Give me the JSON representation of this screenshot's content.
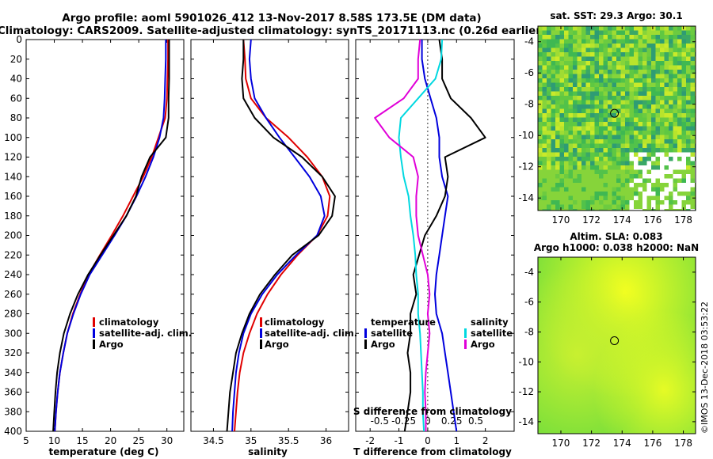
{
  "title_line1": "Argo profile: aoml 5901026_412 13-Nov-2017 8.58S 173.5E (DM data)",
  "title_line2": "Climatology: CARS2009. Satellite-adjusted climatology: synTS_20171113.nc (0.26d earlier)",
  "colors": {
    "climatology": "#e00000",
    "satellite": "#0000dd",
    "argo": "#000000",
    "s_satellite": "#00d8e0",
    "s_argo": "#e000d8"
  },
  "chart_data": [
    {
      "type": "line",
      "id": "temperature",
      "xlabel": "temperature (deg C)",
      "ylabel": "",
      "xlim": [
        5,
        33
      ],
      "ylim": [
        400,
        0
      ],
      "xticks": [
        5,
        10,
        15,
        20,
        25,
        30
      ],
      "xtick_labels": [
        "5",
        "10",
        "15",
        "20",
        "25",
        "30"
      ],
      "yticks": [
        0,
        20,
        40,
        60,
        80,
        100,
        120,
        140,
        160,
        180,
        200,
        220,
        240,
        260,
        280,
        300,
        320,
        340,
        360,
        380,
        400
      ],
      "yticks_labels": [
        "0",
        "20",
        "40",
        "60",
        "80",
        "100",
        "120",
        "140",
        "160",
        "180",
        "200",
        "220",
        "240",
        "260",
        "280",
        "300",
        "320",
        "340",
        "360",
        "380",
        "400"
      ],
      "legend": [
        "climatology",
        "satellite-adj. clim.",
        "Argo"
      ],
      "series": [
        {
          "name": "climatology",
          "color": "#e00000",
          "x": [
            30.2,
            30.2,
            30.1,
            30.0,
            29.7,
            28.5,
            27.3,
            25.8,
            24.0,
            22.2,
            20.2,
            18.1,
            16.1,
            14.6,
            13.3,
            12.3,
            11.6,
            11.0,
            10.6,
            10.3,
            10.1
          ],
          "y": [
            0,
            20,
            40,
            60,
            80,
            100,
            120,
            140,
            160,
            180,
            200,
            220,
            240,
            260,
            280,
            300,
            320,
            340,
            360,
            380,
            400
          ]
        },
        {
          "name": "satellite-adj. clim.",
          "color": "#0000dd",
          "x": [
            29.8,
            29.8,
            29.7,
            29.6,
            29.4,
            28.7,
            27.6,
            26.2,
            24.6,
            22.8,
            20.7,
            18.5,
            16.3,
            14.7,
            13.4,
            12.3,
            11.6,
            11.0,
            10.6,
            10.3,
            10.1
          ],
          "y": [
            0,
            20,
            40,
            60,
            80,
            100,
            120,
            140,
            160,
            180,
            200,
            220,
            240,
            260,
            280,
            300,
            320,
            340,
            360,
            380,
            400
          ]
        },
        {
          "name": "Argo",
          "color": "#000000",
          "x": [
            30.4,
            30.4,
            30.4,
            30.3,
            30.3,
            29.8,
            27.0,
            25.5,
            24.5,
            22.8,
            20.5,
            18.2,
            16.0,
            14.2,
            12.8,
            11.7,
            11.0,
            10.5,
            10.2,
            10.0,
            9.8
          ],
          "y": [
            0,
            20,
            40,
            60,
            80,
            100,
            120,
            140,
            160,
            180,
            200,
            220,
            240,
            260,
            280,
            300,
            320,
            340,
            360,
            380,
            400
          ]
        }
      ]
    },
    {
      "type": "line",
      "id": "salinity",
      "xlabel": "salinity",
      "ylabel": "",
      "xlim": [
        34.2,
        36.3
      ],
      "ylim": [
        400,
        0
      ],
      "xticks": [
        34.5,
        35,
        35.5,
        36
      ],
      "xtick_labels": [
        "34.5",
        "35",
        "35.5",
        "36"
      ],
      "legend": [
        "climatology",
        "satellite-adj. clim.",
        "Argo"
      ],
      "series": [
        {
          "name": "climatology",
          "color": "#e00000",
          "x": [
            34.9,
            34.92,
            34.93,
            35.0,
            35.2,
            35.5,
            35.75,
            35.95,
            36.05,
            36.02,
            35.88,
            35.62,
            35.4,
            35.22,
            35.08,
            34.98,
            34.9,
            34.85,
            34.82,
            34.8,
            34.78
          ],
          "y": [
            0,
            20,
            40,
            60,
            80,
            100,
            120,
            140,
            160,
            180,
            200,
            220,
            240,
            260,
            280,
            300,
            320,
            340,
            360,
            380,
            400
          ]
        },
        {
          "name": "satellite-adj. clim.",
          "color": "#0000dd",
          "x": [
            35.0,
            34.98,
            35.0,
            35.05,
            35.2,
            35.38,
            35.58,
            35.78,
            35.93,
            35.98,
            35.88,
            35.6,
            35.35,
            35.15,
            35.0,
            34.9,
            34.84,
            34.8,
            34.78,
            34.76,
            34.75
          ],
          "y": [
            0,
            20,
            40,
            60,
            80,
            100,
            120,
            140,
            160,
            180,
            200,
            220,
            240,
            260,
            280,
            300,
            320,
            340,
            360,
            380,
            400
          ]
        },
        {
          "name": "Argo",
          "color": "#000000",
          "x": [
            34.9,
            34.9,
            34.88,
            34.9,
            35.05,
            35.3,
            35.68,
            35.95,
            36.12,
            36.08,
            35.9,
            35.55,
            35.32,
            35.12,
            34.98,
            34.88,
            34.8,
            34.76,
            34.72,
            34.7,
            34.68
          ],
          "y": [
            0,
            20,
            40,
            60,
            80,
            100,
            120,
            140,
            160,
            180,
            200,
            220,
            240,
            260,
            280,
            300,
            320,
            340,
            360,
            380,
            400
          ]
        }
      ]
    },
    {
      "type": "line",
      "id": "difference",
      "xlabel": "T difference from climatology",
      "x2label": "S difference from climatology",
      "xlim": [
        -2.5,
        3
      ],
      "ylim": [
        400,
        0
      ],
      "xticks": [
        -2,
        -1,
        0,
        1,
        2
      ],
      "xtick_labels": [
        "-2",
        "-1",
        "0",
        "1",
        "2"
      ],
      "x2lim": [
        -0.75,
        0.9
      ],
      "x2ticks": [
        -0.5,
        -0.25,
        0,
        0.25,
        0.5
      ],
      "x2tick_labels": [
        "-0.5",
        "-0.25",
        "0",
        "0.25",
        "0.5"
      ],
      "legend_temperature_title": "temperature",
      "legend_salinity_title": "salinity",
      "legend_items": [
        "satellite",
        "Argo"
      ],
      "series": [
        {
          "name": "T satellite",
          "axis": "T",
          "color": "#0000dd",
          "x": [
            -0.2,
            -0.2,
            -0.1,
            0.1,
            0.3,
            0.4,
            0.4,
            0.5,
            0.7,
            0.6,
            0.5,
            0.4,
            0.3,
            0.25,
            0.3,
            0.5,
            0.6,
            0.7,
            0.8,
            0.9,
            1.0
          ],
          "y": [
            0,
            20,
            40,
            60,
            80,
            100,
            120,
            140,
            160,
            180,
            200,
            220,
            240,
            260,
            280,
            300,
            320,
            340,
            360,
            380,
            400
          ]
        },
        {
          "name": "T Argo",
          "axis": "T",
          "color": "#000000",
          "x": [
            0.4,
            0.5,
            0.5,
            0.8,
            1.5,
            2.0,
            0.6,
            0.7,
            0.6,
            0.3,
            -0.1,
            -0.3,
            -0.5,
            -0.4,
            -0.6,
            -0.6,
            -0.7,
            -0.6,
            -0.6,
            -0.7,
            -0.8
          ],
          "y": [
            0,
            20,
            40,
            60,
            80,
            100,
            120,
            140,
            160,
            180,
            200,
            220,
            240,
            260,
            280,
            300,
            320,
            340,
            360,
            380,
            400
          ]
        },
        {
          "name": "S satellite",
          "axis": "S",
          "color": "#00d8e0",
          "x": [
            0.15,
            0.14,
            0.08,
            -0.1,
            -0.28,
            -0.3,
            -0.28,
            -0.25,
            -0.2,
            -0.18,
            -0.15,
            -0.13,
            -0.12,
            -0.1,
            -0.1,
            -0.08,
            -0.07,
            -0.06,
            -0.05,
            -0.05,
            -0.04
          ],
          "y": [
            0,
            20,
            40,
            60,
            80,
            100,
            120,
            140,
            160,
            180,
            200,
            220,
            240,
            260,
            280,
            300,
            320,
            340,
            360,
            380,
            400
          ]
        },
        {
          "name": "S Argo",
          "axis": "S",
          "color": "#e000d8",
          "x": [
            -0.08,
            -0.1,
            -0.1,
            -0.25,
            -0.55,
            -0.4,
            -0.15,
            -0.1,
            -0.12,
            -0.12,
            -0.1,
            -0.05,
            0.0,
            0.02,
            0.0,
            0.02,
            0.0,
            -0.02,
            -0.03,
            -0.02,
            -0.02
          ],
          "y": [
            0,
            20,
            40,
            60,
            80,
            100,
            120,
            140,
            160,
            180,
            200,
            220,
            240,
            260,
            280,
            300,
            320,
            340,
            360,
            380,
            400
          ]
        }
      ]
    },
    {
      "type": "heatmap",
      "id": "sst_map",
      "title": "sat. SST: 29.3 Argo: 30.1",
      "xlim": [
        168.5,
        178.8
      ],
      "ylim": [
        -14.8,
        -3
      ],
      "xticks": [
        170,
        172,
        174,
        176,
        178
      ],
      "xtick_labels": [
        "170",
        "172",
        "174",
        "176",
        "178"
      ],
      "yticks": [
        -4,
        -6,
        -8,
        -10,
        -12,
        -14
      ],
      "ytick_labels": [
        "-4",
        "-6",
        "-8",
        "-10",
        "-12",
        "-14"
      ],
      "argo_position": {
        "lon": 173.5,
        "lat": -8.58
      }
    },
    {
      "type": "heatmap",
      "id": "sla_map",
      "title_line1": "Altim. SLA: 0.083",
      "title_line2": "Argo h1000: 0.038 h2000: NaN",
      "xlim": [
        168.5,
        178.8
      ],
      "ylim": [
        -14.8,
        -3
      ],
      "xticks": [
        170,
        172,
        174,
        176,
        178
      ],
      "xtick_labels": [
        "170",
        "172",
        "174",
        "176",
        "178"
      ],
      "yticks": [
        -4,
        -6,
        -8,
        -10,
        -12,
        -14
      ],
      "ytick_labels": [
        "-4",
        "-6",
        "-8",
        "-10",
        "-12",
        "-14"
      ],
      "argo_position": {
        "lon": 173.5,
        "lat": -8.58
      }
    }
  ],
  "watermark": "©IMOS 13-Dec-2018 03:53:22"
}
